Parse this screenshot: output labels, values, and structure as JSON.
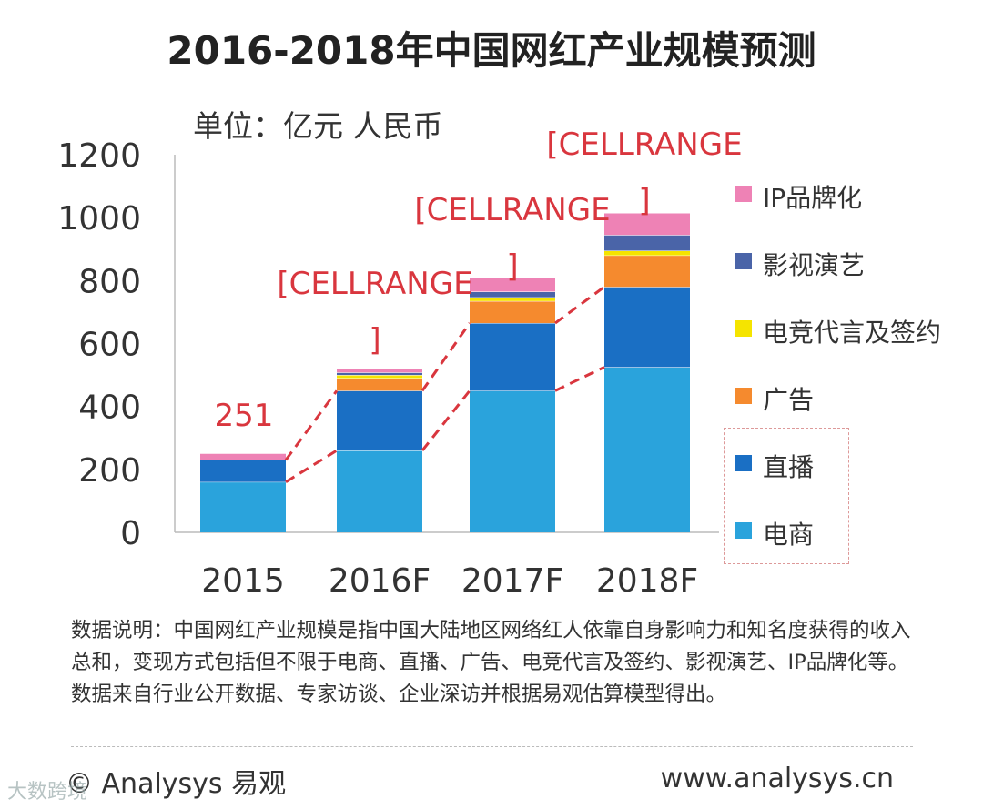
{
  "title": "2016-2018年中国网红产业规模预测",
  "unit": "单位：亿元 人民币",
  "chart_data": {
    "type": "bar",
    "stacked": true,
    "categories": [
      "2015",
      "2016F",
      "2017F",
      "2018F"
    ],
    "series": [
      {
        "name": "电商",
        "color": "#2aa3dc",
        "values": [
          160,
          260,
          450,
          525
        ]
      },
      {
        "name": "直播",
        "color": "#1a6fc4",
        "values": [
          70,
          190,
          215,
          255
        ]
      },
      {
        "name": "广告",
        "color": "#f58a2e",
        "values": [
          0,
          40,
          70,
          100
        ]
      },
      {
        "name": "电竞代言及签约",
        "color": "#f5e400",
        "values": [
          0,
          10,
          12,
          15
        ]
      },
      {
        "name": "影视演艺",
        "color": "#4a64a8",
        "values": [
          0,
          8,
          18,
          50
        ]
      },
      {
        "name": "IP品牌化",
        "color": "#ee82b5",
        "values": [
          21,
          12,
          45,
          70
        ]
      }
    ],
    "totals_labels": [
      "251",
      "[CELLRANGE]",
      "[CELLRANGE]",
      "[CELLRANGE]"
    ],
    "ylim": [
      0,
      1200
    ],
    "yticks": [
      0,
      200,
      400,
      600,
      800,
      1000,
      1200
    ],
    "grid": false,
    "legend_position": "right",
    "trend_lines": "dashed red connectors between adjacent bars",
    "label_color": "#d9363e"
  },
  "note": "数据说明：中国网红产业规模是指中国大陆地区网络红人依靠自身影响力和知名度获得的收入总和，变现方式包括但不限于电商、直播、广告、电竞代言及签约、影视演艺、IP品牌化等。数据来自行业公开数据、专家访谈、企业深访并根据易观估算模型得出。",
  "footer": {
    "copyright": "© Analysys 易观",
    "website": "www.analysys.cn",
    "corner_mark": "大数跨境"
  }
}
